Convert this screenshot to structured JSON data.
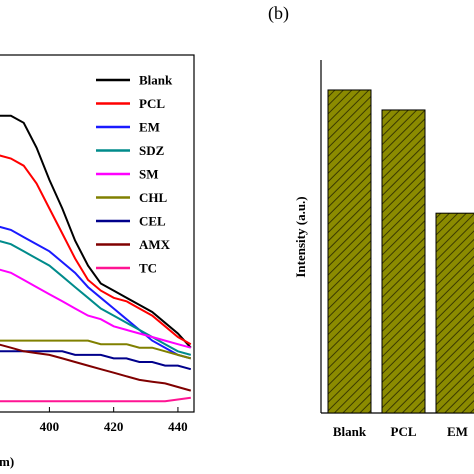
{
  "panel_b_label": "(b)",
  "chart_data": [
    {
      "type": "line",
      "title": "",
      "xlabel": "m)",
      "ylabel": "",
      "xlim": [
        384,
        445
      ],
      "ylim": [
        0,
        1
      ],
      "x_ticks": [
        400,
        420,
        440
      ],
      "legend_position": "top-right",
      "grid": false,
      "series": [
        {
          "name": "Blank",
          "color": "#000000",
          "x": [
            384,
            388,
            392,
            396,
            400,
            404,
            408,
            412,
            416,
            420,
            424,
            428,
            432,
            436,
            440,
            444
          ],
          "y": [
            0.83,
            0.83,
            0.81,
            0.74,
            0.65,
            0.57,
            0.48,
            0.41,
            0.36,
            0.34,
            0.32,
            0.3,
            0.28,
            0.25,
            0.22,
            0.18
          ]
        },
        {
          "name": "PCL",
          "color": "#ff0000",
          "x": [
            384,
            388,
            392,
            396,
            400,
            404,
            408,
            412,
            416,
            420,
            424,
            428,
            432,
            436,
            440,
            444
          ],
          "y": [
            0.72,
            0.71,
            0.69,
            0.64,
            0.57,
            0.5,
            0.43,
            0.37,
            0.34,
            0.32,
            0.31,
            0.29,
            0.27,
            0.24,
            0.21,
            0.19
          ]
        },
        {
          "name": "EM",
          "color": "#1a1aff",
          "x": [
            384,
            388,
            392,
            396,
            400,
            404,
            408,
            412,
            416,
            420,
            424,
            428,
            432,
            436,
            440,
            444
          ],
          "y": [
            0.52,
            0.51,
            0.49,
            0.47,
            0.45,
            0.42,
            0.39,
            0.35,
            0.32,
            0.29,
            0.26,
            0.23,
            0.2,
            0.18,
            0.16,
            0.15
          ]
        },
        {
          "name": "SDZ",
          "color": "#008b8b",
          "x": [
            384,
            388,
            392,
            396,
            400,
            404,
            408,
            412,
            416,
            420,
            424,
            428,
            432,
            436,
            440,
            444
          ],
          "y": [
            0.48,
            0.47,
            0.45,
            0.43,
            0.41,
            0.38,
            0.35,
            0.32,
            0.29,
            0.27,
            0.25,
            0.23,
            0.21,
            0.19,
            0.17,
            0.16
          ]
        },
        {
          "name": "SM",
          "color": "#ff00ff",
          "x": [
            384,
            388,
            392,
            396,
            400,
            404,
            408,
            412,
            416,
            420,
            424,
            428,
            432,
            436,
            440,
            444
          ],
          "y": [
            0.4,
            0.39,
            0.37,
            0.35,
            0.33,
            0.31,
            0.29,
            0.27,
            0.26,
            0.24,
            0.23,
            0.22,
            0.21,
            0.2,
            0.19,
            0.18
          ]
        },
        {
          "name": "CHL",
          "color": "#808000",
          "x": [
            384,
            388,
            392,
            396,
            400,
            404,
            408,
            412,
            416,
            420,
            424,
            428,
            432,
            436,
            440,
            444
          ],
          "y": [
            0.2,
            0.2,
            0.2,
            0.2,
            0.2,
            0.2,
            0.2,
            0.2,
            0.19,
            0.19,
            0.19,
            0.18,
            0.18,
            0.17,
            0.16,
            0.15
          ]
        },
        {
          "name": "CEL",
          "color": "#00008b",
          "x": [
            384,
            388,
            392,
            396,
            400,
            404,
            408,
            412,
            416,
            420,
            424,
            428,
            432,
            436,
            440,
            444
          ],
          "y": [
            0.17,
            0.17,
            0.17,
            0.17,
            0.17,
            0.17,
            0.16,
            0.16,
            0.16,
            0.15,
            0.15,
            0.14,
            0.14,
            0.13,
            0.13,
            0.12
          ]
        },
        {
          "name": "AMX",
          "color": "#800000",
          "x": [
            384,
            388,
            392,
            396,
            400,
            404,
            408,
            412,
            416,
            420,
            424,
            428,
            432,
            436,
            440,
            444
          ],
          "y": [
            0.19,
            0.18,
            0.17,
            0.165,
            0.16,
            0.15,
            0.14,
            0.13,
            0.12,
            0.11,
            0.1,
            0.09,
            0.085,
            0.08,
            0.07,
            0.06
          ]
        },
        {
          "name": "TC",
          "color": "#ff1493",
          "x": [
            384,
            388,
            392,
            396,
            400,
            404,
            408,
            412,
            416,
            420,
            424,
            428,
            432,
            436,
            440,
            444
          ],
          "y": [
            0.03,
            0.03,
            0.03,
            0.03,
            0.03,
            0.03,
            0.03,
            0.03,
            0.03,
            0.03,
            0.03,
            0.03,
            0.03,
            0.03,
            0.035,
            0.04
          ]
        }
      ]
    },
    {
      "type": "bar",
      "title": "",
      "xlabel": "",
      "ylabel": "Intensity (a.u.)",
      "categories": [
        "Blank",
        "PCL",
        "EM"
      ],
      "values": [
        0.97,
        0.91,
        0.6
      ],
      "ylim": [
        0,
        1.06
      ],
      "bar_color": "#7a7a00",
      "hatch": "diagonal",
      "grid": false
    }
  ]
}
